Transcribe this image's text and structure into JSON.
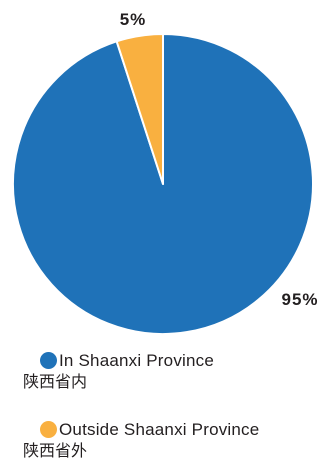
{
  "chart_data": {
    "type": "pie",
    "slices": [
      {
        "label": "In Shaanxi Province",
        "label_zh": "陕西省内",
        "value": 95,
        "value_label": "95%",
        "color": "#1f72b8"
      },
      {
        "label": "Outside Shaanxi Province",
        "label_zh": "陕西省外",
        "value": 5,
        "value_label": "5%",
        "color": "#f9b040"
      }
    ],
    "start_angle": "top",
    "legend_position": "bottom"
  }
}
